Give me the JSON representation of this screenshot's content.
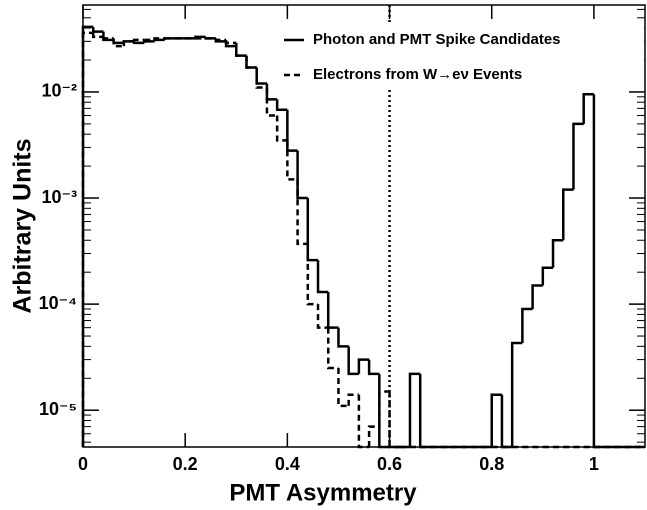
{
  "chart_data": {
    "type": "histogram",
    "x_label": "PMT Asymmetry",
    "y_label": "Arbitrary Units",
    "log_y": true,
    "legend": "top-right",
    "bins": [
      0,
      0.02,
      0.04,
      0.06,
      0.08,
      0.1,
      0.12,
      0.14,
      0.16,
      0.18,
      0.2,
      0.22,
      0.24,
      0.26,
      0.28,
      0.3,
      0.32,
      0.34,
      0.36,
      0.38,
      0.4,
      0.42,
      0.44,
      0.46,
      0.48,
      0.5,
      0.52,
      0.54,
      0.56,
      0.58,
      0.6,
      0.62,
      0.64,
      0.66,
      0.68,
      0.7,
      0.72,
      0.74,
      0.76,
      0.78,
      0.8,
      0.82,
      0.84,
      0.86,
      0.88,
      0.9,
      0.92,
      0.94,
      0.96,
      0.98,
      1.0,
      1.02,
      1.04,
      1.06,
      1.08,
      1.1
    ],
    "series": [
      {
        "name": "Photon and PMT Spike Candidates",
        "color": "#000000",
        "line_style": "solid",
        "values": [
          0.041,
          0.037,
          0.031,
          0.029,
          0.03,
          0.029,
          0.03,
          0.031,
          0.032,
          0.032,
          0.032,
          0.033,
          0.032,
          0.03,
          0.027,
          0.022,
          0.017,
          0.012,
          0.0085,
          0.0068,
          0.0028,
          0.001,
          0.00026,
          0.00013,
          6e-05,
          4e-05,
          2.2e-05,
          3e-05,
          2.2e-05,
          0,
          0,
          0,
          2.2e-05,
          0,
          0,
          0,
          0,
          0,
          0,
          0,
          1.4e-05,
          0,
          4.3e-05,
          9e-05,
          0.00015,
          0.00022,
          0.0004,
          0.0012,
          0.005,
          0.0095,
          0,
          0,
          0,
          0,
          0
        ]
      },
      {
        "name": "Electrons from W→eν Events",
        "color": "#000000",
        "line_style": "dashed",
        "values": [
          0.036,
          0.033,
          0.032,
          0.027,
          0.03,
          0.031,
          0.031,
          0.032,
          0.032,
          0.032,
          0.032,
          0.032,
          0.032,
          0.031,
          0.029,
          0.022,
          0.017,
          0.011,
          0.006,
          0.0035,
          0.0015,
          0.00037,
          0.0001,
          6e-05,
          2.5e-05,
          1.1e-05,
          1.4e-05,
          0,
          7e-06,
          1.5e-05,
          0,
          0,
          0,
          0,
          0,
          0,
          0,
          0,
          0,
          0,
          0,
          0,
          0,
          0,
          0,
          0,
          0,
          0,
          0,
          0,
          0,
          0,
          0,
          0,
          0
        ]
      }
    ],
    "cut": 0.6,
    "xlim": [
      0,
      1.1
    ],
    "xticks": [
      0,
      0.2,
      0.4,
      0.6,
      0.8,
      1
    ],
    "ylim": [
      4.5e-06,
      0.066
    ],
    "yticks": [
      {
        "value": 1e-05,
        "label": "10⁻⁵"
      },
      {
        "value": 0.0001,
        "label": "10⁻⁴"
      },
      {
        "value": 0.001,
        "label": "10⁻³"
      },
      {
        "value": 0.01,
        "label": "10⁻²"
      }
    ]
  }
}
